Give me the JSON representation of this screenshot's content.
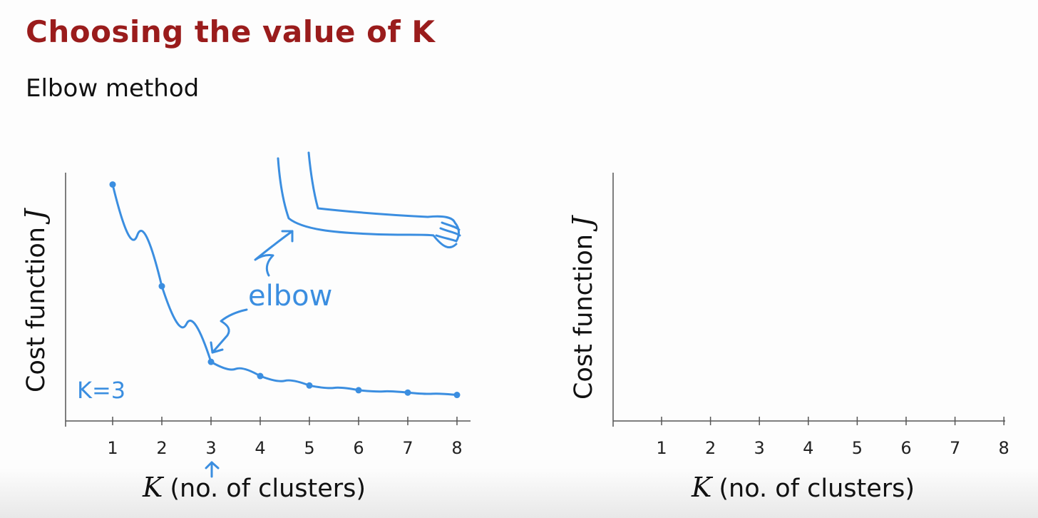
{
  "slide": {
    "title": "Choosing the value of K",
    "subtitle": "Elbow method"
  },
  "colors": {
    "title": "#9a1c1c",
    "ink": "#3b8ee0",
    "axis": "#333333"
  },
  "chart_data": [
    {
      "type": "line",
      "x": [
        1,
        2,
        3,
        4,
        5,
        6,
        7,
        8
      ],
      "series": [
        {
          "values": [
            100,
            57,
            25,
            19,
            15,
            13,
            12,
            11
          ]
        }
      ],
      "xlabel_var": "K",
      "xlabel": "(no. of clusters)",
      "ylabel": "Cost function",
      "ylabel_var": "J",
      "xlim": [
        0,
        8.5
      ],
      "ylim": [
        0,
        105
      ],
      "grid": false,
      "annotations": {
        "elbow_label": "elbow",
        "k_label": "K=3"
      }
    },
    {
      "type": "line",
      "x": [
        1,
        2,
        3,
        4,
        5,
        6,
        7,
        8
      ],
      "series": [],
      "xlabel_var": "K",
      "xlabel": "(no. of clusters)",
      "ylabel": "Cost function",
      "ylabel_var": "J",
      "xlim": [
        0,
        8.5
      ],
      "ylim": [
        0,
        105
      ],
      "grid": false
    }
  ]
}
